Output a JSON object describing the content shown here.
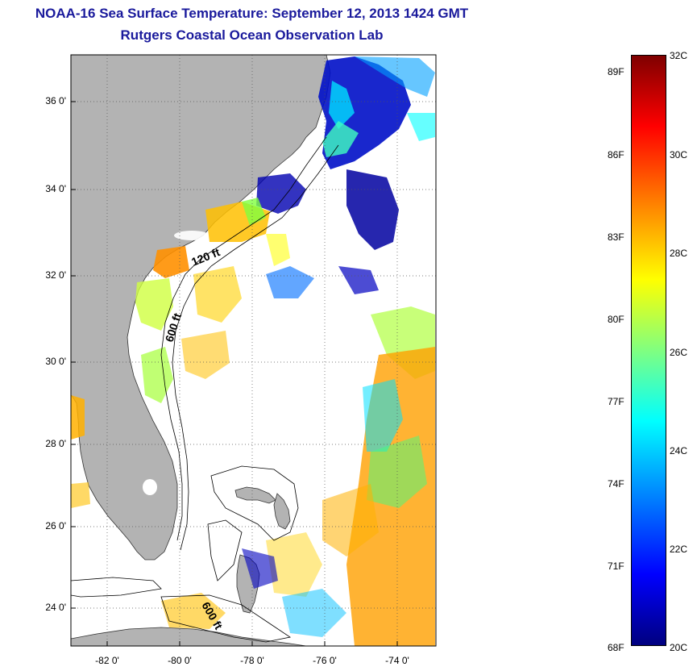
{
  "header": {
    "title": "NOAA-16 Sea Surface Temperature:  September 12, 2013 1424 GMT",
    "subtitle": "Rutgers Coastal Ocean Observation Lab"
  },
  "map": {
    "lat_ticks": [
      "36 0'",
      "34 0'",
      "32 0'",
      "30 0'",
      "28 0'",
      "26 0'",
      "24 0'"
    ],
    "lon_ticks": [
      "-82 0'",
      "-80 0'",
      "-78 0'",
      "-76 0'",
      "-74 0'"
    ],
    "contour_labels": [
      "120 ft",
      "600 ft",
      "600 ft"
    ],
    "land_color": "#b3b3b3",
    "ocean_color": "#ffffff"
  },
  "colorbar": {
    "fahrenheit_labels": [
      "89F",
      "86F",
      "83F",
      "80F",
      "77F",
      "74F",
      "71F",
      "68F"
    ],
    "celsius_labels": [
      "32C",
      "30C",
      "28C",
      "26C",
      "24C",
      "22C",
      "20C"
    ],
    "colors": [
      "#00007f",
      "#0000ff",
      "#0080ff",
      "#00ffff",
      "#80ff80",
      "#ffff00",
      "#ff8000",
      "#ff0000",
      "#7f0000"
    ]
  }
}
